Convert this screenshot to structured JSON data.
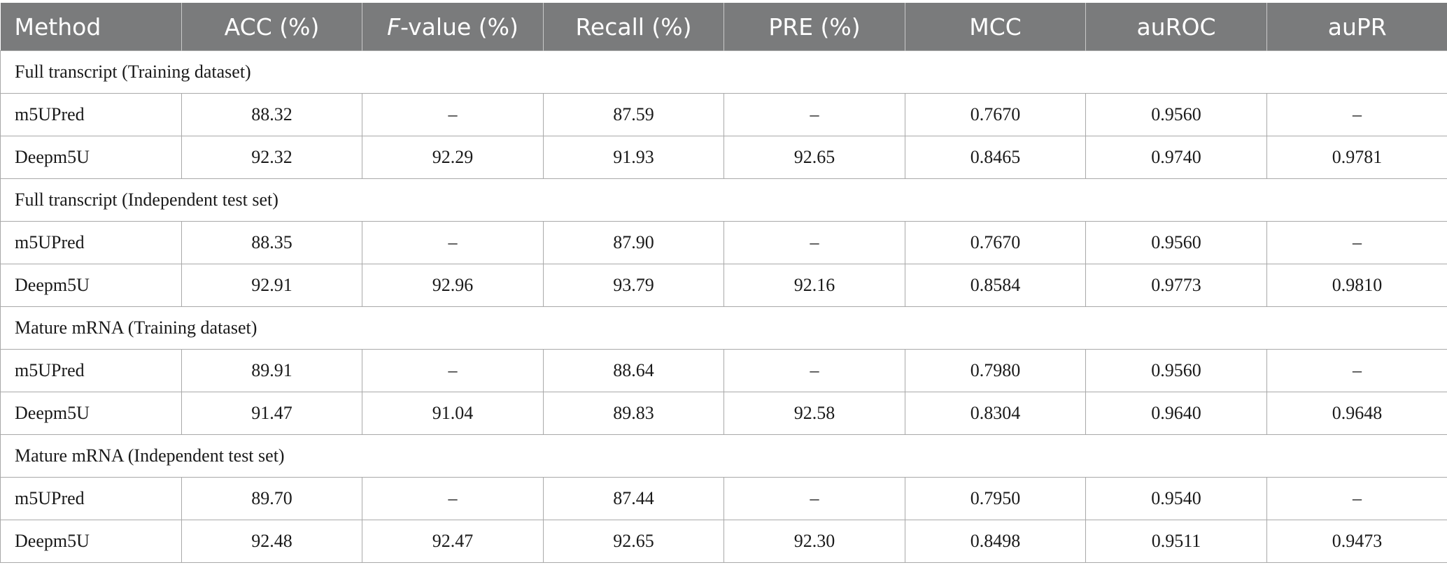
{
  "table": {
    "headers": [
      {
        "label": "Method",
        "italic_prefix": ""
      },
      {
        "label": "ACC (%)",
        "italic_prefix": ""
      },
      {
        "label": "-value (%)",
        "italic_prefix": "F"
      },
      {
        "label": "Recall (%)",
        "italic_prefix": ""
      },
      {
        "label": "PRE (%)",
        "italic_prefix": ""
      },
      {
        "label": "MCC",
        "italic_prefix": ""
      },
      {
        "label": "auROC",
        "italic_prefix": ""
      },
      {
        "label": "auPR",
        "italic_prefix": ""
      }
    ],
    "sections": [
      {
        "title": "Full transcript (Training dataset)",
        "rows": [
          [
            "m5UPred",
            "88.32",
            "–",
            "87.59",
            "–",
            "0.7670",
            "0.9560",
            "–"
          ],
          [
            "Deepm5U",
            "92.32",
            "92.29",
            "91.93",
            "92.65",
            "0.8465",
            "0.9740",
            "0.9781"
          ]
        ]
      },
      {
        "title": "Full transcript (Independent test set)",
        "rows": [
          [
            "m5UPred",
            "88.35",
            "–",
            "87.90",
            "–",
            "0.7670",
            "0.9560",
            "–"
          ],
          [
            "Deepm5U",
            "92.91",
            "92.96",
            "93.79",
            "92.16",
            "0.8584",
            "0.9773",
            "0.9810"
          ]
        ]
      },
      {
        "title": "Mature mRNA (Training dataset)",
        "rows": [
          [
            "m5UPred",
            "89.91",
            "–",
            "88.64",
            "–",
            "0.7980",
            "0.9560",
            "–"
          ],
          [
            "Deepm5U",
            "91.47",
            "91.04",
            "89.83",
            "92.58",
            "0.8304",
            "0.9640",
            "0.9648"
          ]
        ]
      },
      {
        "title": "Mature mRNA (Independent test set)",
        "rows": [
          [
            "m5UPred",
            "89.70",
            "–",
            "87.44",
            "–",
            "0.7950",
            "0.9540",
            "–"
          ],
          [
            "Deepm5U",
            "92.48",
            "92.47",
            "92.65",
            "92.30",
            "0.8498",
            "0.9511",
            "0.9473"
          ]
        ]
      }
    ]
  },
  "colors": {
    "header_background": "#7a7b7c",
    "header_text": "#ffffff",
    "grid_lines": "#a9a9a9",
    "body_text": "#1a1a1a"
  }
}
